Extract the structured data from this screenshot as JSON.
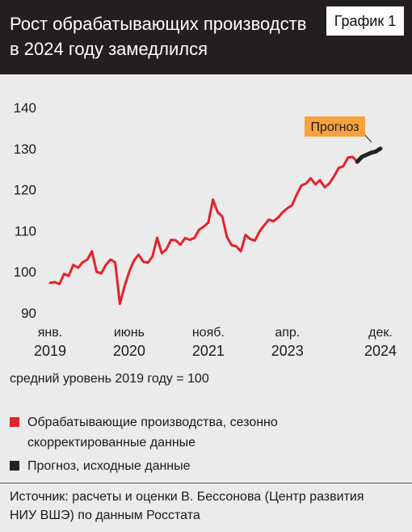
{
  "chart_data": {
    "type": "line",
    "title": "Рост обрабатывающих производств в 2024 году замедлился",
    "badge": "График 1",
    "note": "средний уровень 2019 году = 100",
    "source": "Источник: расчеты и оценки В. Бессонова (Центр развития НИУ ВШЭ) по данным Росстата",
    "annotation": "Прогноз",
    "x": [
      "2019-01",
      "2019-02",
      "2019-03",
      "2019-04",
      "2019-05",
      "2019-06",
      "2019-07",
      "2019-08",
      "2019-09",
      "2019-10",
      "2019-11",
      "2019-12",
      "2020-01",
      "2020-02",
      "2020-03",
      "2020-04",
      "2020-05",
      "2020-06",
      "2020-07",
      "2020-08",
      "2020-09",
      "2020-10",
      "2020-11",
      "2020-12",
      "2021-01",
      "2021-02",
      "2021-03",
      "2021-04",
      "2021-05",
      "2021-06",
      "2021-07",
      "2021-08",
      "2021-09",
      "2021-10",
      "2021-11",
      "2021-12",
      "2022-01",
      "2022-02",
      "2022-03",
      "2022-04",
      "2022-05",
      "2022-06",
      "2022-07",
      "2022-08",
      "2022-09",
      "2022-10",
      "2022-11",
      "2022-12",
      "2023-01",
      "2023-02",
      "2023-03",
      "2023-04",
      "2023-05",
      "2023-06",
      "2023-07",
      "2023-08",
      "2023-09",
      "2023-10",
      "2023-11",
      "2023-12",
      "2024-01",
      "2024-02",
      "2024-03",
      "2024-04",
      "2024-05",
      "2024-06",
      "2024-07",
      "2024-08",
      "2024-09",
      "2024-10",
      "2024-11",
      "2024-12"
    ],
    "xticks": [
      {
        "value": "2019-01",
        "label": "янв. 2019"
      },
      {
        "value": "2020-06",
        "label": "июнь 2020"
      },
      {
        "value": "2021-11",
        "label": "нояб. 2021"
      },
      {
        "value": "2023-04",
        "label": "апр. 2023"
      },
      {
        "value": "2024-12",
        "label": "дек. 2024"
      }
    ],
    "ylim": [
      90,
      140
    ],
    "yticks": [
      90,
      100,
      110,
      120,
      130,
      140
    ],
    "series": [
      {
        "name": "Обрабатывающие производства, сезонно скорректированные данные",
        "color": "#e8202a",
        "values": [
          97.3,
          97.5,
          97.0,
          99.5,
          99.0,
          101.7,
          101.0,
          102.3,
          103.0,
          105.0,
          100.0,
          99.6,
          101.7,
          103.0,
          102.3,
          92.2,
          96.5,
          100.0,
          102.7,
          104.2,
          102.5,
          102.2,
          103.7,
          108.3,
          104.5,
          105.5,
          107.8,
          107.7,
          106.6,
          108.2,
          107.8,
          108.2,
          110.2,
          111.0,
          112.0,
          117.6,
          114.5,
          113.5,
          108.5,
          106.5,
          106.2,
          105.0,
          109.0,
          108.0,
          107.6,
          109.8,
          111.3,
          112.7,
          112.3,
          113.2,
          114.5,
          115.5,
          116.2,
          118.8,
          121.0,
          121.5,
          122.8,
          121.3,
          122.3,
          120.6,
          121.5,
          123.2,
          125.3,
          125.7,
          127.8,
          128.0,
          126.8,
          null,
          null,
          null,
          null,
          null
        ]
      },
      {
        "name": "Прогноз, исходные данные",
        "color": "#222222",
        "values": [
          null,
          null,
          null,
          null,
          null,
          null,
          null,
          null,
          null,
          null,
          null,
          null,
          null,
          null,
          null,
          null,
          null,
          null,
          null,
          null,
          null,
          null,
          null,
          null,
          null,
          null,
          null,
          null,
          null,
          null,
          null,
          null,
          null,
          null,
          null,
          null,
          null,
          null,
          null,
          null,
          null,
          null,
          null,
          null,
          null,
          null,
          null,
          null,
          null,
          null,
          null,
          null,
          null,
          null,
          null,
          null,
          null,
          null,
          null,
          null,
          null,
          null,
          null,
          null,
          null,
          null,
          126.8,
          128.0,
          128.5,
          129.0,
          129.3,
          130.0
        ]
      }
    ]
  }
}
